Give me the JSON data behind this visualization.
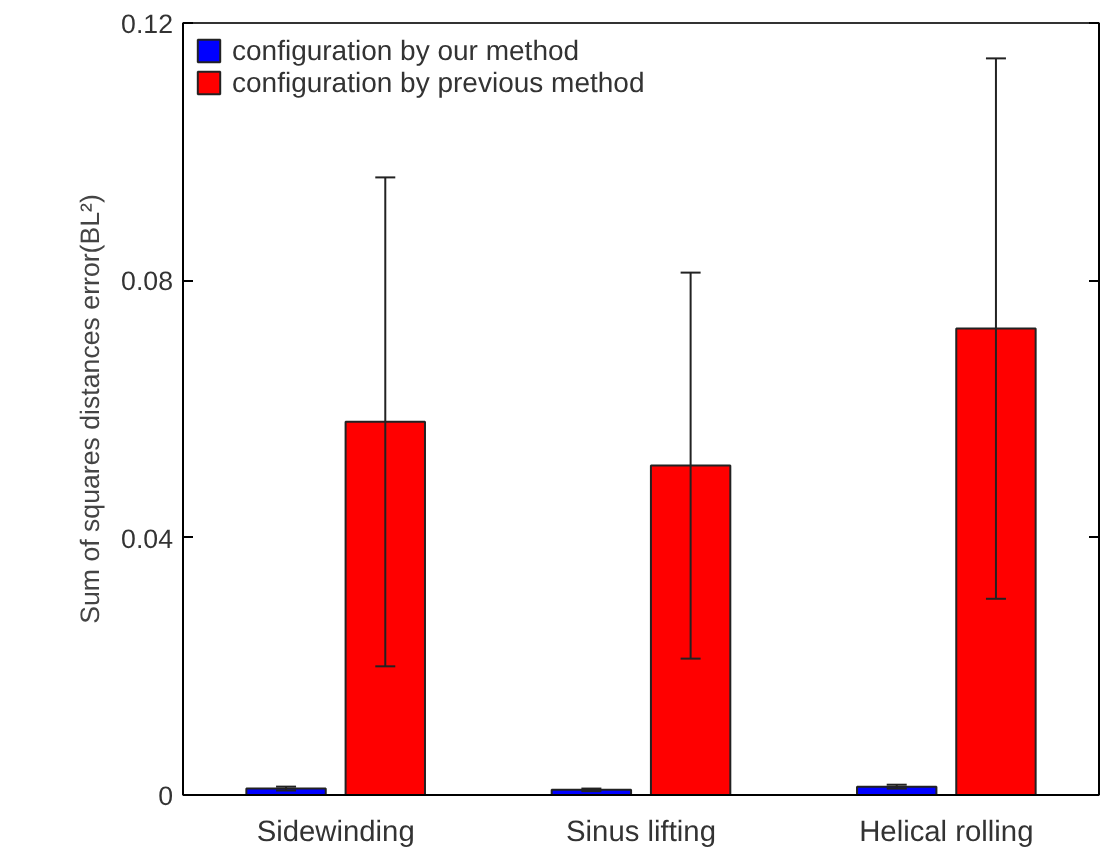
{
  "chart_data": {
    "type": "bar",
    "ylabel": "Sum of squares distances error(BL²)",
    "categories": [
      "Sidewinding",
      "Sinus lifting",
      "Helical rolling"
    ],
    "series": [
      {
        "name": "configuration by our method",
        "color": "#0000ff",
        "values": [
          0.001,
          0.0008,
          0.0013
        ],
        "errors": [
          0.0003,
          0.0002,
          0.0003
        ]
      },
      {
        "name": "configuration by previous method",
        "color": "#ff0000",
        "values": [
          0.058,
          0.0512,
          0.0725
        ],
        "errors": [
          0.038,
          0.03,
          0.042
        ]
      }
    ],
    "ylim": [
      0,
      0.12
    ],
    "yticks": [
      0,
      0.04,
      0.08,
      0.12
    ],
    "grid": false,
    "legend": "top left"
  }
}
